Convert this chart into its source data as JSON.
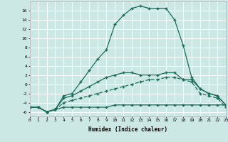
{
  "xlabel": "Humidex (Indice chaleur)",
  "bg_color": "#cce8e5",
  "grid_color": "#ffffff",
  "line_color": "#1a6b5a",
  "x_values": [
    0,
    1,
    2,
    3,
    4,
    5,
    6,
    7,
    8,
    9,
    10,
    11,
    12,
    13,
    14,
    15,
    16,
    17,
    18,
    19,
    20,
    21,
    22,
    23
  ],
  "series_main": [
    -5,
    -5,
    -6,
    -5.5,
    -2.5,
    -2,
    0.5,
    3,
    5.5,
    7.5,
    13,
    15,
    16.5,
    17,
    16.5,
    16.5,
    16.5,
    14,
    8.5,
    1.5,
    -1,
    -2,
    -2.5,
    -4.5
  ],
  "series_upper": [
    -5,
    -5,
    -6,
    -5.5,
    -3,
    -2.5,
    -1.5,
    -0.5,
    0.5,
    1.5,
    2,
    2.5,
    2.5,
    2,
    2,
    2,
    2.5,
    2.5,
    1,
    1,
    -1,
    -2,
    -2.5,
    -4.5
  ],
  "series_mid": [
    -5,
    -5,
    -6,
    -5.5,
    -4,
    -3.5,
    -3,
    -2.5,
    -2,
    -1.5,
    -1,
    -0.5,
    0,
    0.5,
    1,
    1,
    1.5,
    1.5,
    1,
    0.5,
    -2,
    -2.5,
    -3,
    -5
  ],
  "series_lower": [
    -5,
    -5,
    -6,
    -5.5,
    -5,
    -5,
    -5,
    -5,
    -5,
    -5,
    -4.5,
    -4.5,
    -4.5,
    -4.5,
    -4.5,
    -4.5,
    -4.5,
    -4.5,
    -4.5,
    -4.5,
    -4.5,
    -4.5,
    -4.5,
    -4.5
  ],
  "xlim": [
    0,
    23
  ],
  "ylim": [
    -7,
    18
  ],
  "yticks": [
    -6,
    -4,
    -2,
    0,
    2,
    4,
    6,
    8,
    10,
    12,
    14,
    16
  ],
  "xticks": [
    0,
    1,
    2,
    3,
    4,
    5,
    6,
    7,
    8,
    9,
    10,
    11,
    12,
    13,
    14,
    15,
    16,
    17,
    18,
    19,
    20,
    21,
    22,
    23
  ]
}
